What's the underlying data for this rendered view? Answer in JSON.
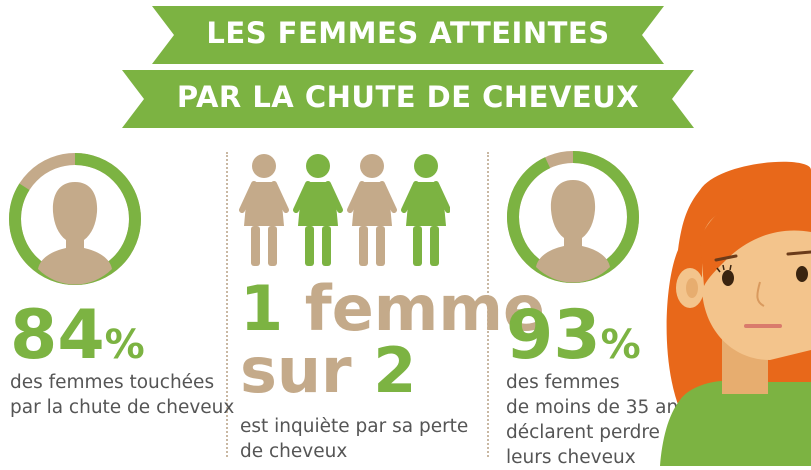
{
  "title": {
    "line1": "LES FEMMES ATTEINTES",
    "line2": "PAR LA CHUTE DE CHEVEUX"
  },
  "colors": {
    "green": "#7cb342",
    "tan": "#c4aa8a",
    "text": "#555555",
    "hair": "#e8681a",
    "skin": "#f3c48c"
  },
  "stat1": {
    "number": "84",
    "unit": "%",
    "caption_line1": "des femmes touchées",
    "caption_line2": "par la chute de cheveux",
    "ring_fraction": 0.84
  },
  "stat2": {
    "line1_number": "1",
    "line1_word": "femme",
    "line2_word": "sur",
    "line2_number": "2",
    "caption_line1": "est inquiète par sa perte",
    "caption_line2": "de cheveux",
    "figures": [
      "tan",
      "green",
      "tan",
      "green"
    ]
  },
  "stat3": {
    "number": "93",
    "unit": "%",
    "caption_line1": "des femmes",
    "caption_line2": "de moins de 35 ans",
    "caption_line3": "déclarent perdre",
    "caption_line4": "leurs cheveux",
    "ring_fraction": 0.93
  },
  "icons": [
    "woman-silhouette-icon",
    "woman-figure-icon",
    "worried-woman-illustration"
  ]
}
